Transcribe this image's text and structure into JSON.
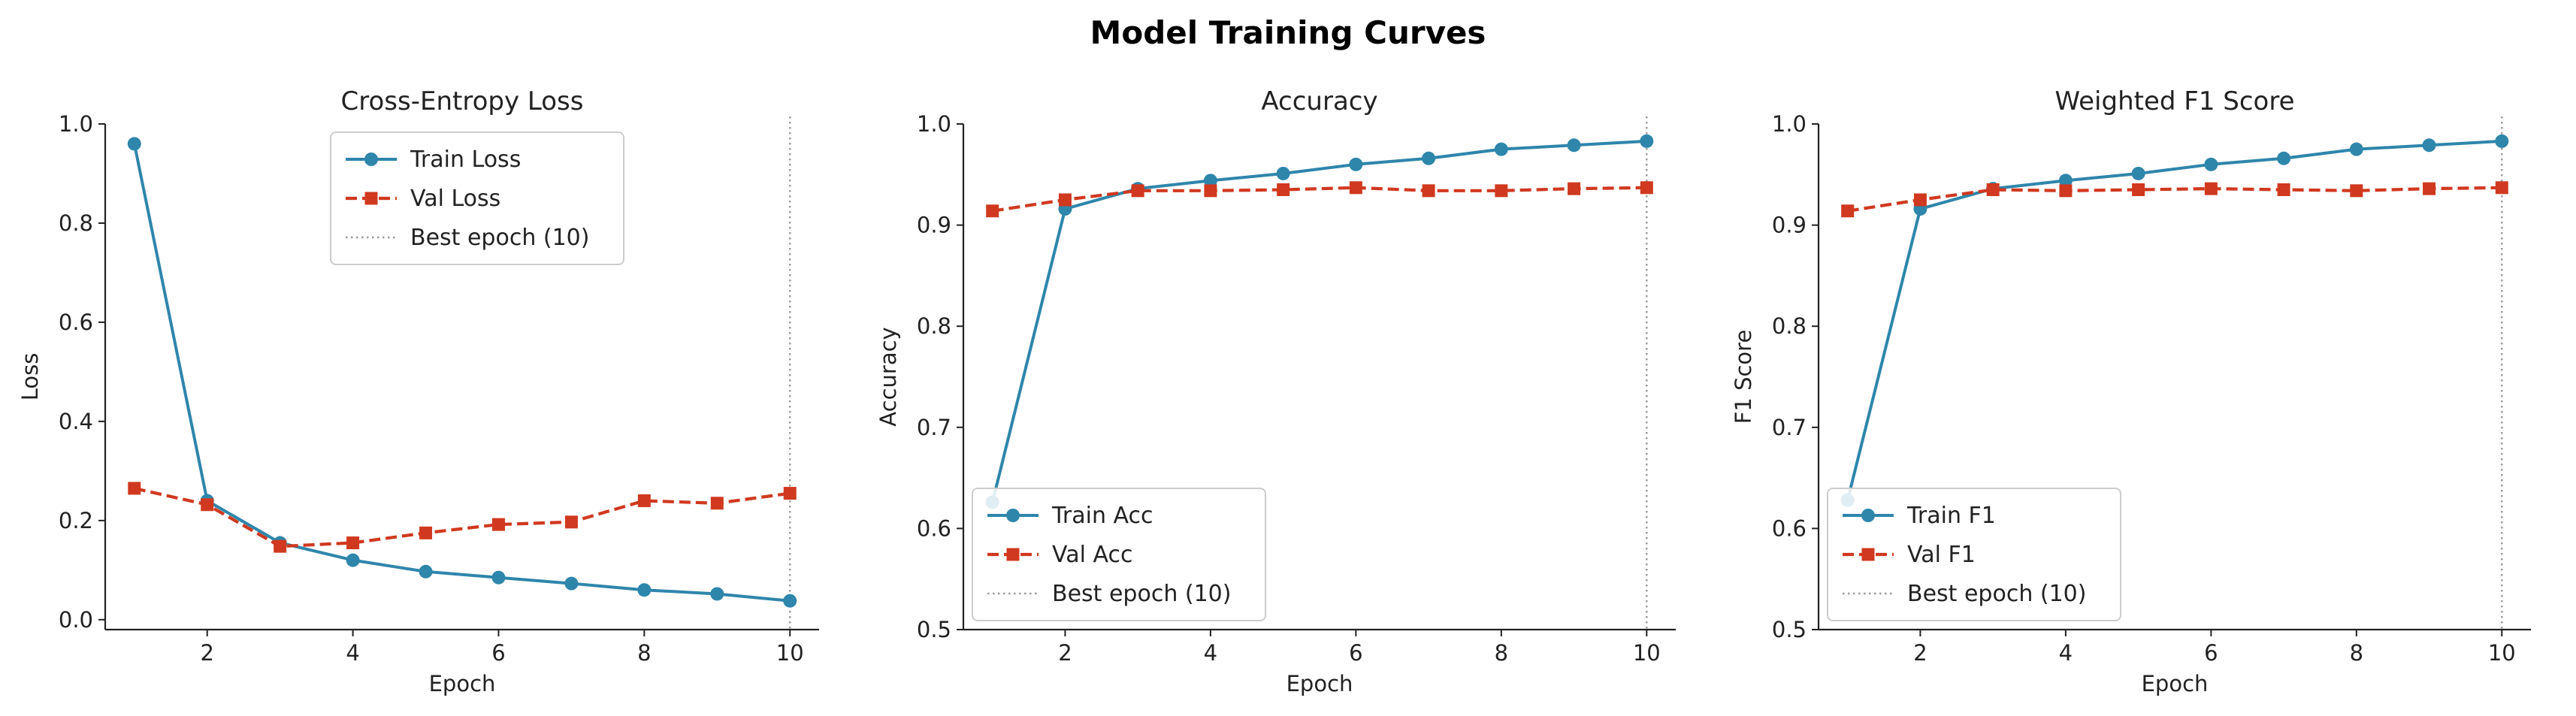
{
  "figure": {
    "title": "Model Training Curves"
  },
  "colors": {
    "train": "#2E86AB",
    "val": "#D0391F",
    "best": "#9a9a9a",
    "axis": "#222222"
  },
  "chart_data": [
    {
      "type": "line",
      "title": "Cross-Entropy Loss",
      "xlabel": "Epoch",
      "ylabel": "Loss",
      "xlim": [
        0.6,
        10.4
      ],
      "ylim": [
        -0.02,
        1.0
      ],
      "xticks": [
        2,
        4,
        6,
        8,
        10
      ],
      "yticks": [
        0.0,
        0.2,
        0.4,
        0.6,
        0.8,
        1.0
      ],
      "ytick_labels": [
        "0.0",
        "0.2",
        "0.4",
        "0.6",
        "0.8",
        "1.0"
      ],
      "x": [
        1,
        2,
        3,
        4,
        5,
        6,
        7,
        8,
        9,
        10
      ],
      "series": [
        {
          "name": "Train Loss",
          "style": "solid-circle",
          "values": [
            0.96,
            0.24,
            0.155,
            0.12,
            0.097,
            0.085,
            0.073,
            0.06,
            0.052,
            0.038
          ]
        },
        {
          "name": "Val Loss",
          "style": "dashed-square",
          "values": [
            0.265,
            0.232,
            0.148,
            0.155,
            0.175,
            0.192,
            0.197,
            0.24,
            0.235,
            0.255
          ]
        }
      ],
      "best_epoch": 10,
      "best_label": "Best epoch (10)",
      "legend": "top-center"
    },
    {
      "type": "line",
      "title": "Accuracy",
      "xlabel": "Epoch",
      "ylabel": "Accuracy",
      "xlim": [
        0.6,
        10.4
      ],
      "ylim": [
        0.5,
        1.0
      ],
      "xticks": [
        2,
        4,
        6,
        8,
        10
      ],
      "yticks": [
        0.5,
        0.6,
        0.7,
        0.8,
        0.9,
        1.0
      ],
      "ytick_labels": [
        "0.5",
        "0.6",
        "0.7",
        "0.8",
        "0.9",
        "1.0"
      ],
      "x": [
        1,
        2,
        3,
        4,
        5,
        6,
        7,
        8,
        9,
        10
      ],
      "series": [
        {
          "name": "Train Acc",
          "style": "solid-circle",
          "values": [
            0.626,
            0.916,
            0.936,
            0.944,
            0.951,
            0.96,
            0.966,
            0.975,
            0.979,
            0.983
          ]
        },
        {
          "name": "Val Acc",
          "style": "dashed-square",
          "values": [
            0.914,
            0.925,
            0.934,
            0.934,
            0.935,
            0.937,
            0.934,
            0.934,
            0.936,
            0.937
          ]
        }
      ],
      "best_epoch": 10,
      "best_label": "Best epoch (10)",
      "legend": "bottom-left"
    },
    {
      "type": "line",
      "title": "Weighted F1 Score",
      "xlabel": "Epoch",
      "ylabel": "F1 Score",
      "xlim": [
        0.6,
        10.4
      ],
      "ylim": [
        0.5,
        1.0
      ],
      "xticks": [
        2,
        4,
        6,
        8,
        10
      ],
      "yticks": [
        0.5,
        0.6,
        0.7,
        0.8,
        0.9,
        1.0
      ],
      "ytick_labels": [
        "0.5",
        "0.6",
        "0.7",
        "0.8",
        "0.9",
        "1.0"
      ],
      "x": [
        1,
        2,
        3,
        4,
        5,
        6,
        7,
        8,
        9,
        10
      ],
      "series": [
        {
          "name": "Train F1",
          "style": "solid-circle",
          "values": [
            0.628,
            0.916,
            0.936,
            0.944,
            0.951,
            0.96,
            0.966,
            0.975,
            0.979,
            0.983
          ]
        },
        {
          "name": "Val F1",
          "style": "dashed-square",
          "values": [
            0.914,
            0.925,
            0.935,
            0.934,
            0.935,
            0.936,
            0.935,
            0.934,
            0.936,
            0.937
          ]
        }
      ],
      "best_epoch": 10,
      "best_label": "Best epoch (10)",
      "legend": "bottom-left"
    }
  ]
}
